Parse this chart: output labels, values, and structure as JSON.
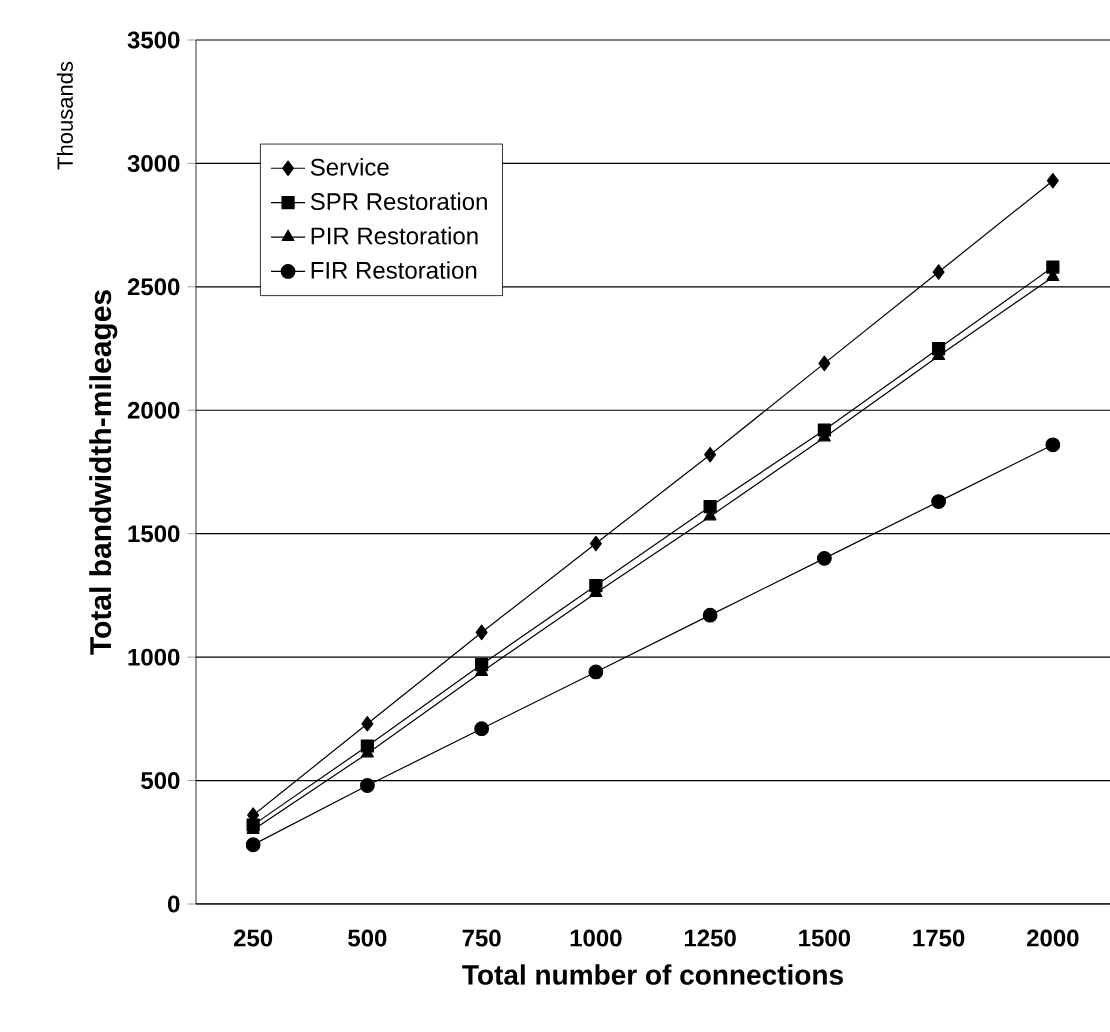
{
  "chart_data": {
    "type": "line",
    "xlabel": "Total number of connections",
    "ylabel": "Total bandwidth-mileages",
    "annotations": [
      "Thousands"
    ],
    "categories": [
      "250",
      "500",
      "750",
      "1000",
      "1250",
      "1500",
      "1750",
      "2000"
    ],
    "series": [
      {
        "name": "Service",
        "color": "#000000",
        "marker": "diamond",
        "values": [
          360,
          730,
          1100,
          1460,
          1820,
          2190,
          2560,
          2930
        ]
      },
      {
        "name": "SPR Restoration",
        "color": "#000000",
        "marker": "square",
        "values": [
          320,
          640,
          970,
          1290,
          1610,
          1920,
          2250,
          2580
        ]
      },
      {
        "name": "PIR Restoration",
        "color": "#000000",
        "marker": "triangle",
        "values": [
          300,
          610,
          940,
          1260,
          1570,
          1890,
          2220,
          2540
        ]
      },
      {
        "name": "FIR Restoration",
        "color": "#000000",
        "marker": "circle",
        "values": [
          240,
          480,
          710,
          940,
          1170,
          1400,
          1630,
          1860
        ]
      }
    ],
    "ylim": [
      0,
      3500
    ],
    "yticks": [
      0,
      500,
      1000,
      1500,
      2000,
      2500,
      3000,
      3500
    ],
    "grid": "y",
    "legend": "top left",
    "line_style": "solid"
  }
}
